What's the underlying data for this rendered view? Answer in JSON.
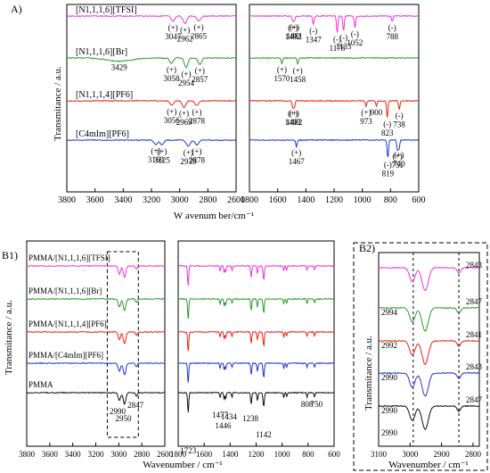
{
  "colors": {
    "pink": "#ee33dd",
    "green": "#2a9a2a",
    "red": "#ee2211",
    "blue": "#2233dd",
    "black": "#111111"
  },
  "chart_data": [
    {
      "panel_label": "A)",
      "type": "line",
      "ylabel": "Transmitance / a.u.",
      "xlabel": "W avenum ber/cm⁻¹",
      "xlim_left": [
        3800,
        2600
      ],
      "xticks_left": [
        3800,
        3600,
        3400,
        3200,
        3000,
        2800,
        2600
      ],
      "xlim_right": [
        1800,
        600
      ],
      "xticks_right": [
        1800,
        1600,
        1400,
        1200,
        1000,
        800,
        600
      ],
      "series": [
        {
          "name": "[N1,1,1,6][TFSI]",
          "color": "pink",
          "peaks": [
            {
              "x": 3047,
              "depth": 0.5,
              "label": "(+)\n3047"
            },
            {
              "x": 2962,
              "depth": 0.7,
              "label": "(+)\n2962"
            },
            {
              "x": 2865,
              "depth": 0.45,
              "label": "(+)\n2865"
            },
            {
              "x": 1492,
              "depth": 0.5,
              "label": "(+)\n1492"
            },
            {
              "x": 1481,
              "depth": 0.45,
              "label": "(+)\n1481"
            },
            {
              "x": 1347,
              "depth": 0.8,
              "label": "(-)\n1347"
            },
            {
              "x": 1178,
              "depth": 1.6,
              "label": "(-)\n1178"
            },
            {
              "x": 1133,
              "depth": 1.4,
              "label": "(-)\n1133"
            },
            {
              "x": 1052,
              "depth": 1.1,
              "label": "(-)\n1052"
            },
            {
              "x": 788,
              "depth": 0.5,
              "label": "(-)\n788"
            }
          ]
        },
        {
          "name": "[N1,1,1,6][Br]",
          "color": "green",
          "peaks": [
            {
              "x": 3429,
              "depth": 0.3,
              "label": "3429"
            },
            {
              "x": 3058,
              "depth": 0.5,
              "label": "(+)\n3058"
            },
            {
              "x": 2954,
              "depth": 0.9,
              "label": "(+)\n2954"
            },
            {
              "x": 2857,
              "depth": 0.6,
              "label": "(+)\n2857"
            },
            {
              "x": 1570,
              "depth": 0.5,
              "label": "(+)\n1570"
            },
            {
              "x": 1458,
              "depth": 0.6,
              "label": "(+)\n1458"
            }
          ]
        },
        {
          "name": "[N1,1,1,4][PF6]",
          "color": "red",
          "peaks": [
            {
              "x": 3056,
              "depth": 0.4,
              "label": "(+)\n3056"
            },
            {
              "x": 2969,
              "depth": 0.6,
              "label": "(+)\n2969"
            },
            {
              "x": 2878,
              "depth": 0.45,
              "label": "(+)\n2878"
            },
            {
              "x": 1493,
              "depth": 0.6,
              "label": "(+)\n1493"
            },
            {
              "x": 1482,
              "depth": 0.6,
              "label": "(+)\n1482"
            },
            {
              "x": 973,
              "depth": 0.5,
              "label": "(+)\n973"
            },
            {
              "x": 900,
              "depth": 0.5,
              "label": "900"
            },
            {
              "x": 823,
              "depth": 1.6,
              "label": "(-)\n823"
            },
            {
              "x": 738,
              "depth": 0.8,
              "label": "(-)\n738"
            }
          ]
        },
        {
          "name": "[C4mIm][PF6]",
          "color": "blue",
          "peaks": [
            {
              "x": 3169,
              "depth": 0.4,
              "label": "(+)\n3169"
            },
            {
              "x": 3125,
              "depth": 0.45,
              "label": "(+)\n3125"
            },
            {
              "x": 2939,
              "depth": 0.6,
              "label": "(+)\n2939"
            },
            {
              "x": 2878,
              "depth": 0.45,
              "label": "(+)\n2878"
            },
            {
              "x": 1467,
              "depth": 0.6,
              "label": "(+)\n1467"
            },
            {
              "x": 819,
              "depth": 1.7,
              "label": "(-)\n819"
            },
            {
              "x": 751,
              "depth": 0.9,
              "label": "(+)\n751"
            },
            {
              "x": 740,
              "depth": 0.8,
              "label": "(+)\n740"
            }
          ]
        }
      ]
    },
    {
      "panel_label": "B1)",
      "type": "line",
      "ylabel": "Transmitance / a.u.",
      "xlabel": "Wavenumber / cm⁻¹",
      "xlim_left": [
        3800,
        2600
      ],
      "xticks_left": [
        3800,
        3600,
        3400,
        3200,
        3000,
        2800,
        2600
      ],
      "xlim_right": [
        1800,
        600
      ],
      "xticks_right": [
        1800,
        1600,
        1400,
        1200,
        1000,
        800,
        600
      ],
      "series": [
        {
          "name": "PMMA/[N1,1,1,6][TFSI]",
          "color": "pink"
        },
        {
          "name": "PMMA/[N1,1,1,6][Br]",
          "color": "green"
        },
        {
          "name": "PMMA/[N1,1,1,4][PF6]",
          "color": "red"
        },
        {
          "name": "PMMA/[C4mIm][PF6]",
          "color": "blue"
        },
        {
          "name": "PMMA",
          "color": "black"
        }
      ],
      "common_peaks": [
        2990,
        2950,
        1723,
        1477,
        1446,
        1434,
        1238,
        1142,
        808,
        750
      ],
      "annotations": [
        "2990",
        "2950",
        "2847",
        "1723",
        "1477",
        "1446",
        "1434",
        "1238",
        "1142",
        "808",
        "750"
      ]
    },
    {
      "panel_label": "B2)",
      "type": "line",
      "ylabel": "Transmitance / a.u.",
      "xlabel": "Wavenumber / cm⁻¹",
      "xlim": [
        3100,
        2780
      ],
      "xticks": [
        3100,
        3000,
        2900,
        2800
      ],
      "series": [
        {
          "name": "PMMA/[N1,1,1,6][TFSI]",
          "color": "pink",
          "left_label": "",
          "right_label": "2843"
        },
        {
          "name": "PMMA/[N1,1,1,6][Br]",
          "color": "green",
          "left_label": "2994",
          "right_label": "2847"
        },
        {
          "name": "PMMA/[N1,1,1,4][PF6]",
          "color": "red",
          "left_label": "2992",
          "right_label": "2841"
        },
        {
          "name": "PMMA/[C4mIm][PF6]",
          "color": "blue",
          "left_label": "2990",
          "right_label": "2843"
        },
        {
          "name": "PMMA",
          "color": "black",
          "left_label": "2990",
          "right_label": "2847"
        },
        {
          "name": "",
          "color": "black",
          "left_label": "2990",
          "right_label": ""
        }
      ]
    }
  ]
}
